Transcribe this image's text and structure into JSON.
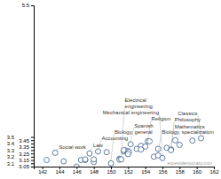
{
  "chart_data": {
    "type": "scatter",
    "x": [
      142.5,
      143.5,
      144.5,
      146.0,
      146.5,
      147.0,
      147.0,
      147.5,
      148.0,
      148.0,
      148.5,
      149.5,
      150.0,
      151.0,
      151.0,
      151.5,
      151.7,
      151.5,
      152.0,
      152.1,
      152.0,
      152.3,
      153.0,
      153.5,
      153.5,
      154.0,
      154.3,
      154.5,
      155.0,
      155.5,
      155.5,
      156.0,
      156.5,
      157.0,
      157.0,
      157.5,
      158.0,
      159.5,
      160.5,
      151.2
    ],
    "values": [
      3.15,
      3.26,
      3.13,
      3.05,
      3.15,
      3.15,
      3.16,
      3.25,
      3.12,
      3.16,
      3.28,
      3.27,
      3.1,
      3.17,
      3.155,
      3.28,
      3.295,
      3.3,
      3.285,
      3.27,
      3.24,
      3.39,
      3.32,
      3.365,
      3.31,
      3.355,
      3.435,
      3.435,
      3.2,
      3.22,
      3.32,
      3.18,
      3.335,
      3.31,
      3.3,
      3.45,
      3.38,
      3.445,
      3.48,
      3.16
    ],
    "labels": [
      null,
      "Social work",
      null,
      null,
      null,
      null,
      null,
      "Law",
      null,
      null,
      "Accounting",
      null,
      "Biology, general",
      null,
      null,
      null,
      null,
      null,
      null,
      null,
      null,
      "Spanish",
      null,
      null,
      null,
      null,
      "Religion",
      null,
      null,
      "Biology, specialization",
      null,
      "Mechanical engineering",
      null,
      "Mathematics",
      "Philosophy",
      null,
      null,
      null,
      "Classics",
      "Electrical\nengineering"
    ],
    "color": "#3a5f8a",
    "marker": "circle",
    "xlim": [
      141,
      162
    ],
    "ylim": [
      3.05,
      5.5
    ],
    "xticks": [
      142,
      144,
      146,
      148,
      150,
      152,
      154,
      156,
      158,
      160,
      162
    ],
    "yticks": [
      3.05,
      3.1,
      3.15,
      3.2,
      3.25,
      3.3,
      3.35,
      3.4,
      3.45,
      3.5,
      5.5
    ],
    "grid": false,
    "annotation": "excessdemocracy.com"
  }
}
